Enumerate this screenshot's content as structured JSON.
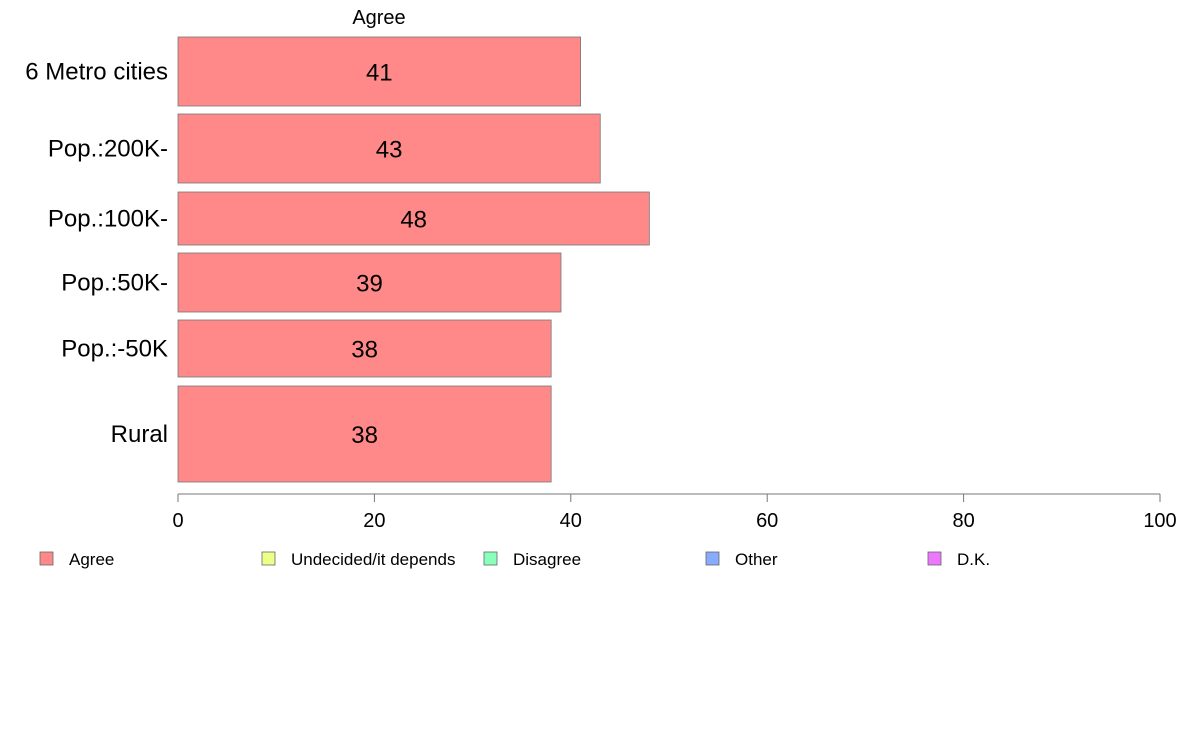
{
  "chart_data": {
    "type": "bar",
    "orientation": "horizontal",
    "title": "Agree",
    "xlabel": "",
    "ylabel": "",
    "categories": [
      "6 Metro cities",
      "Pop.:200K-",
      "Pop.:100K-",
      "Pop.:50K-",
      "Pop.:-50K",
      "Rural"
    ],
    "series": [
      {
        "name": "Agree",
        "values": [
          41,
          43,
          48,
          39,
          38,
          38
        ],
        "color": "#ff8888"
      }
    ],
    "xlim": [
      0,
      100
    ],
    "xticks": [
      0,
      20,
      40,
      60,
      80,
      100
    ],
    "grid": false,
    "legend": {
      "placement": "bottom",
      "items": [
        {
          "label": "Agree",
          "color": "#ff8888"
        },
        {
          "label": "Undecided/it depends",
          "color": "#eeff88"
        },
        {
          "label": "Disagree",
          "color": "#88ffbb"
        },
        {
          "label": "Other",
          "color": "#88aaff"
        },
        {
          "label": "D.K.",
          "color": "#ee77ff"
        }
      ]
    }
  }
}
